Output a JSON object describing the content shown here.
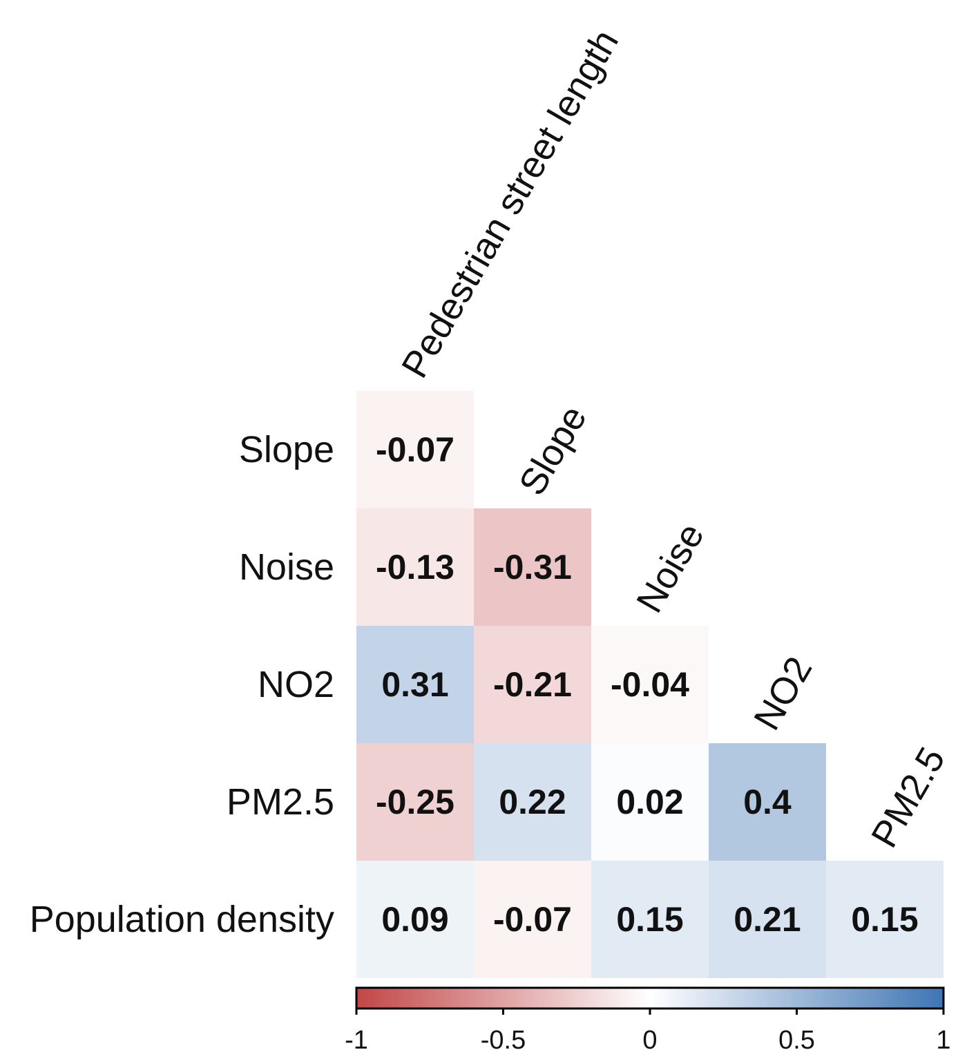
{
  "chart_data": {
    "type": "heatmap",
    "layout": "lower-triangle correlation matrix",
    "row_labels": [
      "Slope",
      "Noise",
      "NO2",
      "PM2.5",
      "Population density"
    ],
    "column_labels": [
      "Pedestrian street length",
      "Slope",
      "Noise",
      "NO2",
      "PM2.5"
    ],
    "values": [
      [
        -0.07
      ],
      [
        -0.13,
        -0.31
      ],
      [
        0.31,
        -0.21,
        -0.04
      ],
      [
        -0.25,
        0.22,
        0.02,
        0.4
      ],
      [
        0.09,
        -0.07,
        0.15,
        0.21,
        0.15
      ]
    ],
    "value_labels": [
      [
        "-0.07"
      ],
      [
        "-0.13",
        "-0.31"
      ],
      [
        "0.31",
        "-0.21",
        "-0.04"
      ],
      [
        "-0.25",
        "0.22",
        "0.02",
        "0.4"
      ],
      [
        "0.09",
        "-0.07",
        "0.15",
        "0.21",
        "0.15"
      ]
    ],
    "colorbar": {
      "range": [
        -1,
        1
      ],
      "ticks": [
        -1,
        -0.5,
        0,
        0.5,
        1
      ],
      "tick_labels": [
        "-1",
        "-0.5",
        "0",
        "0.5",
        "1"
      ],
      "orientation": "horizontal",
      "placement": "bottom"
    },
    "colors": {
      "negative": "#c24647",
      "neutral": "#ffffff",
      "positive": "#3e75b4"
    },
    "title": "",
    "xlabel": "",
    "ylabel": ""
  }
}
